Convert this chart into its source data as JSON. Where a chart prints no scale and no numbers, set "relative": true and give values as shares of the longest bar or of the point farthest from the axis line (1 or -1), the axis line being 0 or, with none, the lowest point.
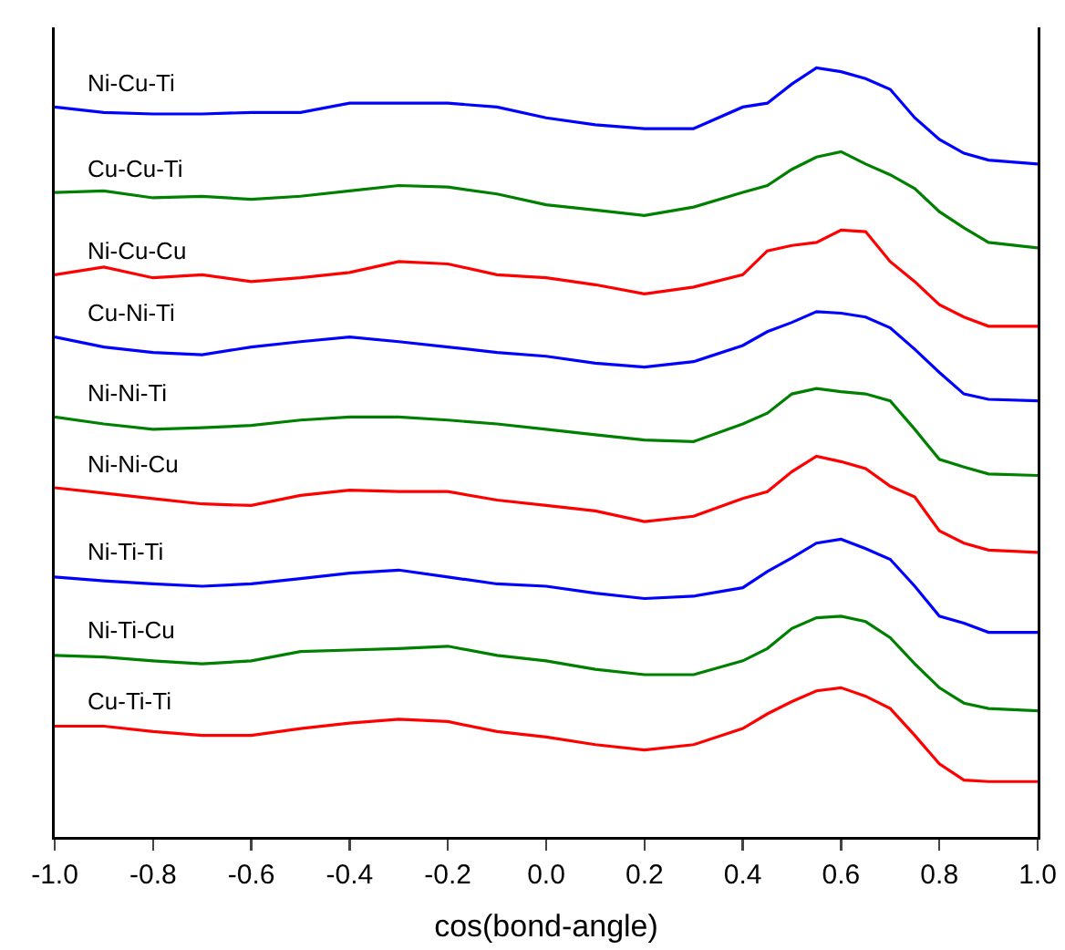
{
  "chart_data": {
    "type": "line",
    "xlabel": "cos(bond-angle)",
    "relative": true,
    "tick_labels": "x",
    "legend": false,
    "x": [
      -1,
      -0.9,
      -0.8,
      -0.7,
      -0.6,
      -0.5,
      -0.4,
      -0.3,
      -0.2,
      -0.1,
      0,
      0.1,
      0.2,
      0.3,
      0.4,
      0.45,
      0.5,
      0.55,
      0.6,
      0.65,
      0.7,
      0.75,
      0.8,
      0.85,
      0.9,
      1.0
    ],
    "xlim": [
      -1,
      1
    ],
    "xticks": [
      {
        "value": -1,
        "label": "-1.0"
      },
      -0.8,
      -0.6,
      -0.4,
      -0.2,
      {
        "value": 0,
        "label": "0.0"
      },
      0.2,
      0.4,
      0.6,
      0.8,
      {
        "value": 1,
        "label": "1.0"
      }
    ],
    "series": [
      {
        "name": "Ni-Cu-Ti",
        "color": "#0000ff",
        "values": [
          0.949,
          0.942,
          0.94,
          0.94,
          0.942,
          0.942,
          0.954,
          0.954,
          0.954,
          0.949,
          0.935,
          0.926,
          0.921,
          0.921,
          0.949,
          0.954,
          0.979,
          1,
          0.995,
          0.986,
          0.972,
          0.935,
          0.907,
          0.889,
          0.88,
          0.875
        ]
      },
      {
        "name": "Cu-Cu-Ti",
        "color": "#008000",
        "values": [
          0.838,
          0.84,
          0.831,
          0.833,
          0.829,
          0.833,
          0.84,
          0.847,
          0.845,
          0.836,
          0.822,
          0.815,
          0.808,
          0.819,
          0.838,
          0.847,
          0.868,
          0.884,
          0.891,
          0.875,
          0.861,
          0.843,
          0.813,
          0.792,
          0.773,
          0.766
        ]
      },
      {
        "name": "Ni-Cu-Cu",
        "color": "#ff0000",
        "values": [
          0.731,
          0.741,
          0.727,
          0.731,
          0.722,
          0.727,
          0.734,
          0.748,
          0.745,
          0.731,
          0.727,
          0.718,
          0.706,
          0.715,
          0.731,
          0.762,
          0.769,
          0.773,
          0.789,
          0.787,
          0.748,
          0.722,
          0.692,
          0.676,
          0.664,
          0.664
        ]
      },
      {
        "name": "Cu-Ni-Ti",
        "color": "#0000ff",
        "values": [
          0.65,
          0.637,
          0.63,
          0.627,
          0.637,
          0.644,
          0.65,
          0.644,
          0.637,
          0.63,
          0.625,
          0.616,
          0.611,
          0.618,
          0.639,
          0.657,
          0.669,
          0.683,
          0.681,
          0.676,
          0.662,
          0.634,
          0.604,
          0.576,
          0.569,
          0.567
        ]
      },
      {
        "name": "Ni-Ni-Ti",
        "color": "#008000",
        "values": [
          0.546,
          0.537,
          0.53,
          0.532,
          0.535,
          0.542,
          0.546,
          0.546,
          0.542,
          0.537,
          0.53,
          0.523,
          0.516,
          0.514,
          0.537,
          0.551,
          0.576,
          0.583,
          0.579,
          0.576,
          0.567,
          0.53,
          0.491,
          0.481,
          0.472,
          0.47
        ]
      },
      {
        "name": "Ni-Ni-Cu",
        "color": "#ff0000",
        "values": [
          0.454,
          0.447,
          0.44,
          0.433,
          0.431,
          0.444,
          0.451,
          0.449,
          0.449,
          0.438,
          0.431,
          0.424,
          0.41,
          0.417,
          0.44,
          0.449,
          0.475,
          0.495,
          0.488,
          0.479,
          0.456,
          0.442,
          0.398,
          0.382,
          0.373,
          0.37
        ]
      },
      {
        "name": "Ni-Ti-Ti",
        "color": "#0000ff",
        "values": [
          0.338,
          0.333,
          0.329,
          0.326,
          0.329,
          0.336,
          0.343,
          0.347,
          0.338,
          0.329,
          0.326,
          0.317,
          0.31,
          0.313,
          0.324,
          0.345,
          0.363,
          0.382,
          0.387,
          0.375,
          0.361,
          0.326,
          0.287,
          0.278,
          0.266,
          0.266
        ]
      },
      {
        "name": "Ni-Ti-Cu",
        "color": "#008000",
        "values": [
          0.236,
          0.234,
          0.229,
          0.225,
          0.229,
          0.241,
          0.243,
          0.245,
          0.248,
          0.236,
          0.229,
          0.218,
          0.211,
          0.211,
          0.229,
          0.245,
          0.271,
          0.285,
          0.287,
          0.28,
          0.259,
          0.225,
          0.194,
          0.174,
          0.167,
          0.164
        ]
      },
      {
        "name": "Cu-Ti-Ti",
        "color": "#ff0000",
        "values": [
          0.144,
          0.144,
          0.137,
          0.132,
          0.132,
          0.141,
          0.148,
          0.153,
          0.15,
          0.137,
          0.13,
          0.12,
          0.113,
          0.12,
          0.141,
          0.16,
          0.176,
          0.19,
          0.194,
          0.183,
          0.167,
          0.132,
          0.095,
          0.074,
          0.072,
          0.072
        ]
      }
    ]
  }
}
